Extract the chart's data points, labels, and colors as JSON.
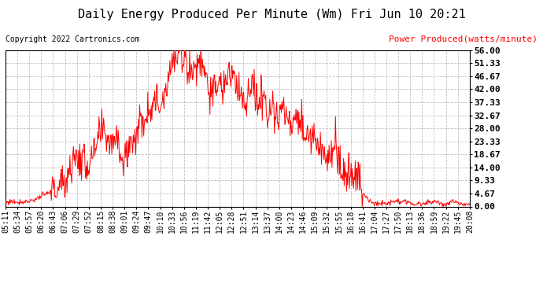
{
  "title": "Daily Energy Produced Per Minute (Wm) Fri Jun 10 20:21",
  "copyright_text": "Copyright 2022 Cartronics.com",
  "legend_text": "Power Produced(watts/minute)",
  "legend_color": "#ff0000",
  "line_color": "#ff0000",
  "background_color": "#ffffff",
  "grid_color": "#b0b0b0",
  "ymin": 0.0,
  "ymax": 56.0,
  "yticks": [
    0.0,
    4.67,
    9.33,
    14.0,
    18.67,
    23.33,
    28.0,
    32.67,
    37.33,
    42.0,
    46.67,
    51.33,
    56.0
  ],
  "xtick_labels": [
    "05:11",
    "05:34",
    "05:57",
    "06:20",
    "06:43",
    "07:06",
    "07:29",
    "07:52",
    "08:15",
    "08:38",
    "09:01",
    "09:24",
    "09:47",
    "10:10",
    "10:33",
    "10:56",
    "11:19",
    "11:42",
    "12:05",
    "12:28",
    "12:51",
    "13:14",
    "13:37",
    "14:00",
    "14:23",
    "14:46",
    "15:09",
    "15:32",
    "15:55",
    "16:18",
    "16:41",
    "17:04",
    "17:27",
    "17:50",
    "18:13",
    "18:36",
    "18:59",
    "19:22",
    "19:45",
    "20:08"
  ],
  "title_fontsize": 11,
  "copyright_fontsize": 7,
  "legend_fontsize": 8,
  "axis_tick_fontsize": 7,
  "figsize": [
    6.9,
    3.75
  ],
  "dpi": 100,
  "y_values": [
    1.5,
    1.8,
    1.6,
    1.7,
    2.0,
    2.5,
    3.5,
    4.5,
    5.5,
    7.0,
    8.5,
    14.0,
    18.0,
    16.5,
    15.0,
    17.0,
    25.5,
    26.0,
    23.0,
    27.0,
    15.0,
    22.0,
    25.0,
    30.0,
    34.0,
    38.0,
    36.0,
    40.0,
    50.0,
    53.0,
    55.0,
    52.0,
    48.0,
    53.0,
    50.0,
    38.0,
    44.0,
    42.0,
    48.0,
    45.0,
    40.0,
    38.0,
    42.0,
    37.0,
    39.0,
    35.0,
    32.0,
    36.0,
    30.0,
    28.0,
    33.0,
    25.0,
    27.0,
    22.0,
    20.0,
    18.0,
    22.0,
    14.0,
    10.5,
    9.0,
    11.0,
    4.5,
    1.5,
    1.2,
    1.0,
    1.3,
    1.8,
    2.0,
    1.5,
    1.2,
    1.0,
    0.8,
    1.5,
    1.8,
    1.2,
    0.8,
    1.5,
    1.0,
    0.8,
    0.5
  ]
}
